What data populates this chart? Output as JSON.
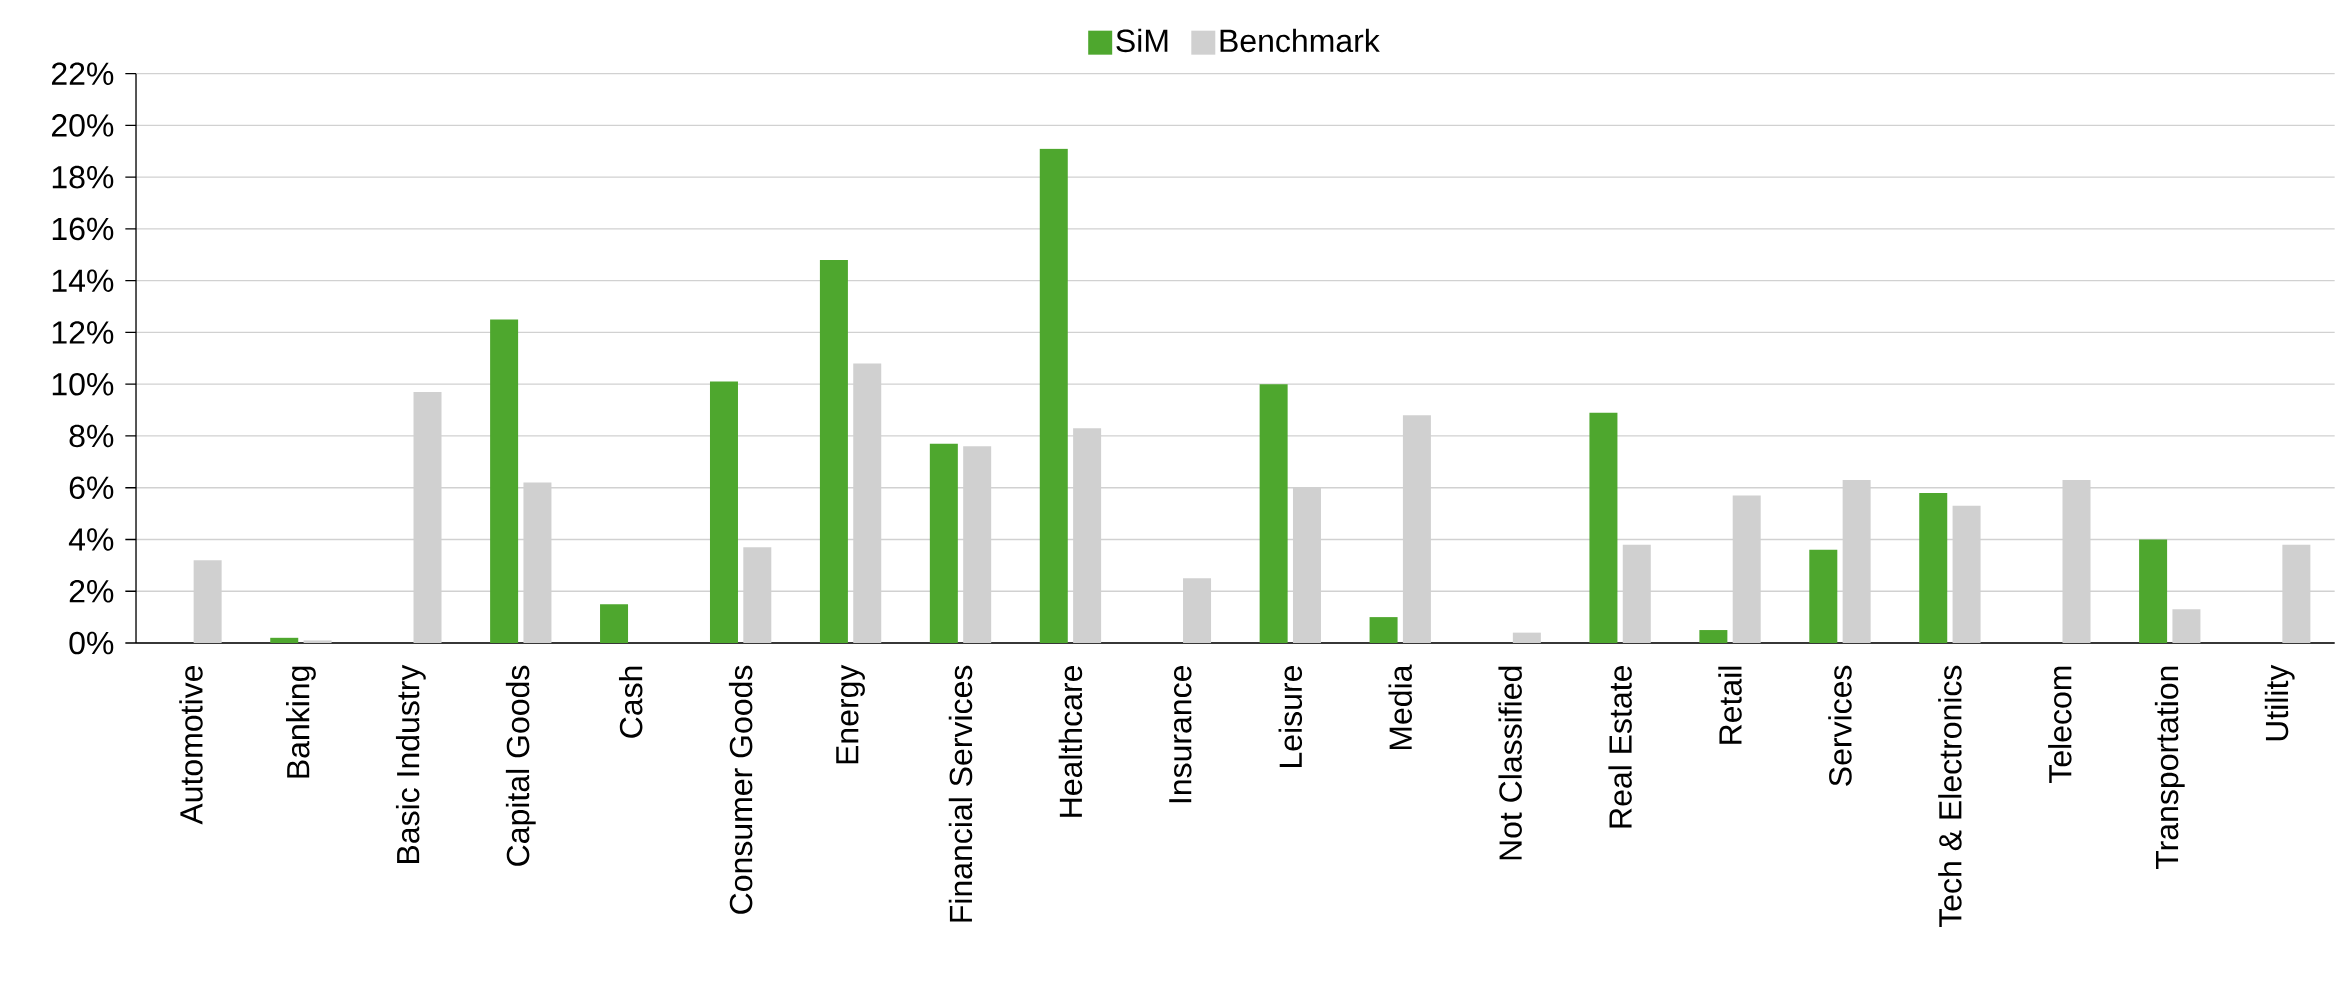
{
  "chart_data": {
    "type": "bar",
    "categories": [
      "Automotive",
      "Banking",
      "Basic Industry",
      "Capital Goods",
      "Cash",
      "Consumer Goods",
      "Energy",
      "Financial Services",
      "Healthcare",
      "Insurance",
      "Leisure",
      "Media",
      "Not Classified",
      "Real Estate",
      "Retail",
      "Services",
      "Tech & Electronics",
      "Telecom",
      "Transportation",
      "Utility"
    ],
    "series": [
      {
        "name": "SiM",
        "color": "#4ea72e",
        "values": [
          0,
          0.2,
          0,
          12.5,
          1.5,
          10.1,
          14.8,
          7.7,
          19.1,
          0,
          10.0,
          1.0,
          0,
          8.9,
          0.5,
          3.6,
          5.8,
          0,
          4.0,
          0
        ]
      },
      {
        "name": "Benchmark",
        "color": "#d0d0d0",
        "values": [
          3.2,
          0.1,
          9.7,
          6.2,
          0,
          3.7,
          10.8,
          7.6,
          8.3,
          2.5,
          6.0,
          8.8,
          0.4,
          3.8,
          5.7,
          6.3,
          5.3,
          6.3,
          1.3,
          3.8
        ]
      }
    ],
    "ylim": [
      0,
      22
    ],
    "yticks": [
      {
        "value": 0,
        "label": "0%"
      },
      {
        "value": 2,
        "label": "2%"
      },
      {
        "value": 4,
        "label": "4%"
      },
      {
        "value": 6,
        "label": "6%"
      },
      {
        "value": 8,
        "label": "8%"
      },
      {
        "value": 10,
        "label": "10%"
      },
      {
        "value": 12,
        "label": "12%"
      },
      {
        "value": 14,
        "label": "14%"
      },
      {
        "value": 16,
        "label": "16%"
      },
      {
        "value": 18,
        "label": "18%"
      },
      {
        "value": 20,
        "label": "20%"
      },
      {
        "value": 22,
        "label": "22%"
      }
    ],
    "grid": "y",
    "legend": "top"
  }
}
